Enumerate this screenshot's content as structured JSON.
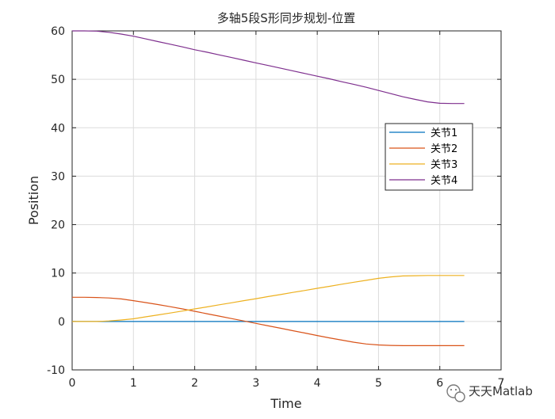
{
  "chart_data": {
    "type": "line",
    "title": "多轴5段S形同步规划-位置",
    "xlabel": "Time",
    "ylabel": "Position",
    "xlim": [
      0,
      7
    ],
    "ylim": [
      -10,
      60
    ],
    "xticks": [
      0,
      1,
      2,
      3,
      4,
      5,
      6,
      7
    ],
    "yticks": [
      -10,
      0,
      10,
      20,
      30,
      40,
      50,
      60
    ],
    "grid": true,
    "legend": {
      "placement": "right",
      "entries": [
        "关节1",
        "关节2",
        "关节3",
        "关节4"
      ]
    },
    "x": [
      0,
      0.2,
      0.4,
      0.6,
      0.8,
      1.0,
      1.2,
      1.4,
      1.6,
      1.8,
      2.0,
      2.2,
      2.4,
      2.6,
      2.8,
      3.0,
      3.2,
      3.4,
      3.6,
      3.8,
      4.0,
      4.2,
      4.4,
      4.6,
      4.8,
      5.0,
      5.2,
      5.4,
      5.6,
      5.8,
      6.0,
      6.2,
      6.4
    ],
    "series": [
      {
        "name": "关节1",
        "color": "#0072BD",
        "values": [
          0,
          0,
          0,
          0,
          0,
          0,
          0,
          0,
          0,
          0,
          0,
          0,
          0,
          0,
          0,
          0,
          0,
          0,
          0,
          0,
          0,
          0,
          0,
          0,
          0,
          0,
          0,
          0,
          0,
          0,
          0,
          0,
          0
        ]
      },
      {
        "name": "关节2",
        "color": "#D95319",
        "values": [
          5.0,
          5.0,
          4.95,
          4.85,
          4.65,
          4.3,
          3.9,
          3.5,
          3.05,
          2.6,
          2.1,
          1.6,
          1.1,
          0.6,
          0.1,
          -0.4,
          -0.9,
          -1.4,
          -1.9,
          -2.4,
          -2.9,
          -3.4,
          -3.85,
          -4.3,
          -4.65,
          -4.85,
          -4.95,
          -5.0,
          -5.0,
          -5.0,
          -5.0,
          -5.0,
          -5.0
        ]
      },
      {
        "name": "关节3",
        "color": "#EDB120",
        "values": [
          0,
          0,
          0,
          0.1,
          0.3,
          0.55,
          0.95,
          1.35,
          1.75,
          2.15,
          2.6,
          3.0,
          3.45,
          3.85,
          4.3,
          4.7,
          5.15,
          5.55,
          6.0,
          6.4,
          6.85,
          7.25,
          7.7,
          8.1,
          8.5,
          8.9,
          9.2,
          9.4,
          9.45,
          9.5,
          9.5,
          9.5,
          9.5
        ]
      },
      {
        "name": "关节4",
        "color": "#7E2F8E",
        "values": [
          60,
          60,
          59.95,
          59.7,
          59.35,
          58.9,
          58.35,
          57.8,
          57.25,
          56.7,
          56.1,
          55.6,
          55.05,
          54.5,
          53.95,
          53.4,
          52.85,
          52.3,
          51.75,
          51.2,
          50.65,
          50.1,
          49.5,
          48.95,
          48.35,
          47.7,
          47.05,
          46.4,
          45.85,
          45.35,
          45.05,
          45.0,
          45.0
        ]
      }
    ]
  },
  "watermark": {
    "text": "天天Matlab",
    "icon": "wechat-icon"
  }
}
